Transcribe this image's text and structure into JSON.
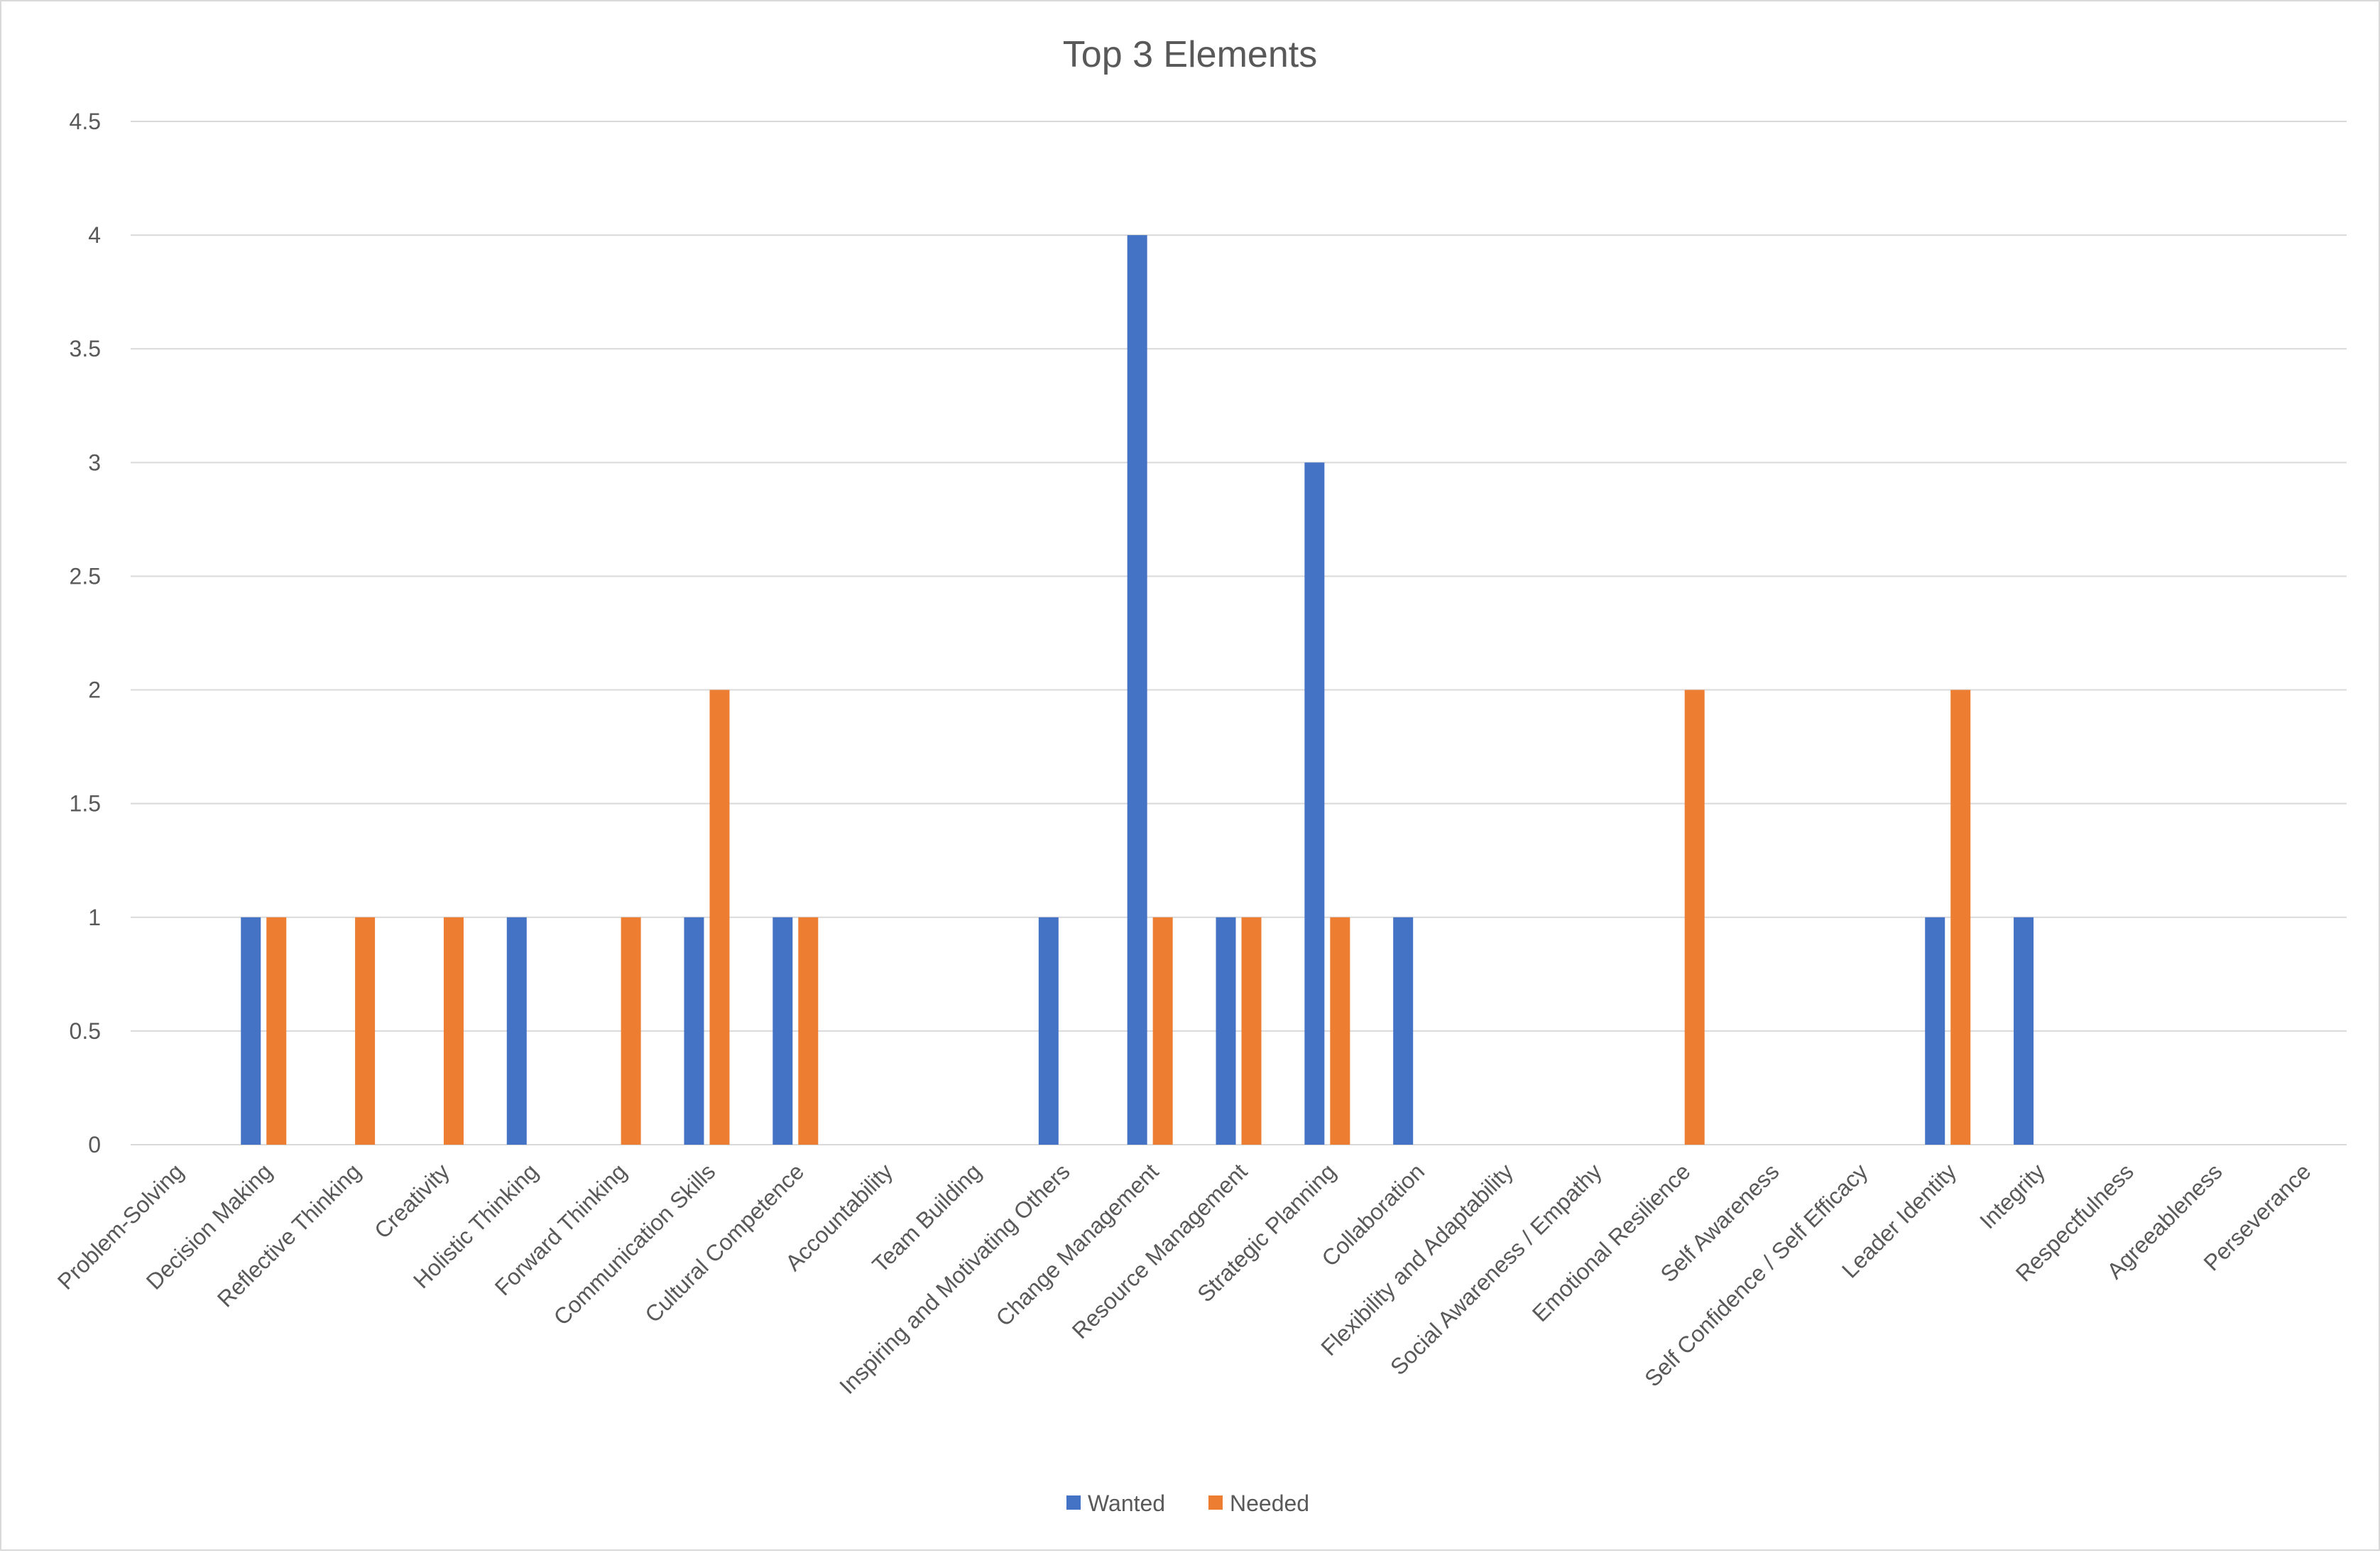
{
  "chart_data": {
    "type": "bar",
    "title": "Top 3 Elements",
    "xlabel": "",
    "ylabel": "",
    "ylim": [
      0,
      4.5
    ],
    "yticks": [
      "0",
      "0.5",
      "1",
      "1.5",
      "2",
      "2.5",
      "3",
      "3.5",
      "4",
      "4.5"
    ],
    "grid": true,
    "legend_position": "bottom",
    "categories": [
      "Problem-Solving",
      "Decision Making",
      "Reflective Thinking",
      "Creativity",
      "Holistic Thinking",
      "Forward Thinking",
      "Communication Skills",
      "Cultural Competence",
      "Accountability",
      "Team Building",
      "Inspiring and Motivating Others",
      "Change Management",
      "Resource Management",
      "Strategic Planning",
      "Collaboration",
      "Flexibility and Adaptability",
      "Social Awareness / Empathy",
      "Emotional Resilience",
      "Self Awareness",
      "Self Confidence / Self Efficacy",
      "Leader Identity",
      "Integrity",
      "Respectfulness",
      "Agreeableness",
      "Perseverance"
    ],
    "series": [
      {
        "name": "Wanted",
        "color": "#4472C4",
        "values": [
          0,
          1,
          0,
          0,
          1,
          0,
          1,
          1,
          0,
          0,
          1,
          4,
          1,
          3,
          1,
          0,
          0,
          0,
          0,
          0,
          1,
          1,
          0,
          0,
          0
        ]
      },
      {
        "name": "Needed",
        "color": "#ED7D31",
        "values": [
          0,
          1,
          1,
          1,
          0,
          1,
          2,
          1,
          0,
          0,
          0,
          1,
          1,
          1,
          0,
          0,
          0,
          2,
          0,
          0,
          2,
          0,
          0,
          0,
          0
        ]
      }
    ]
  }
}
